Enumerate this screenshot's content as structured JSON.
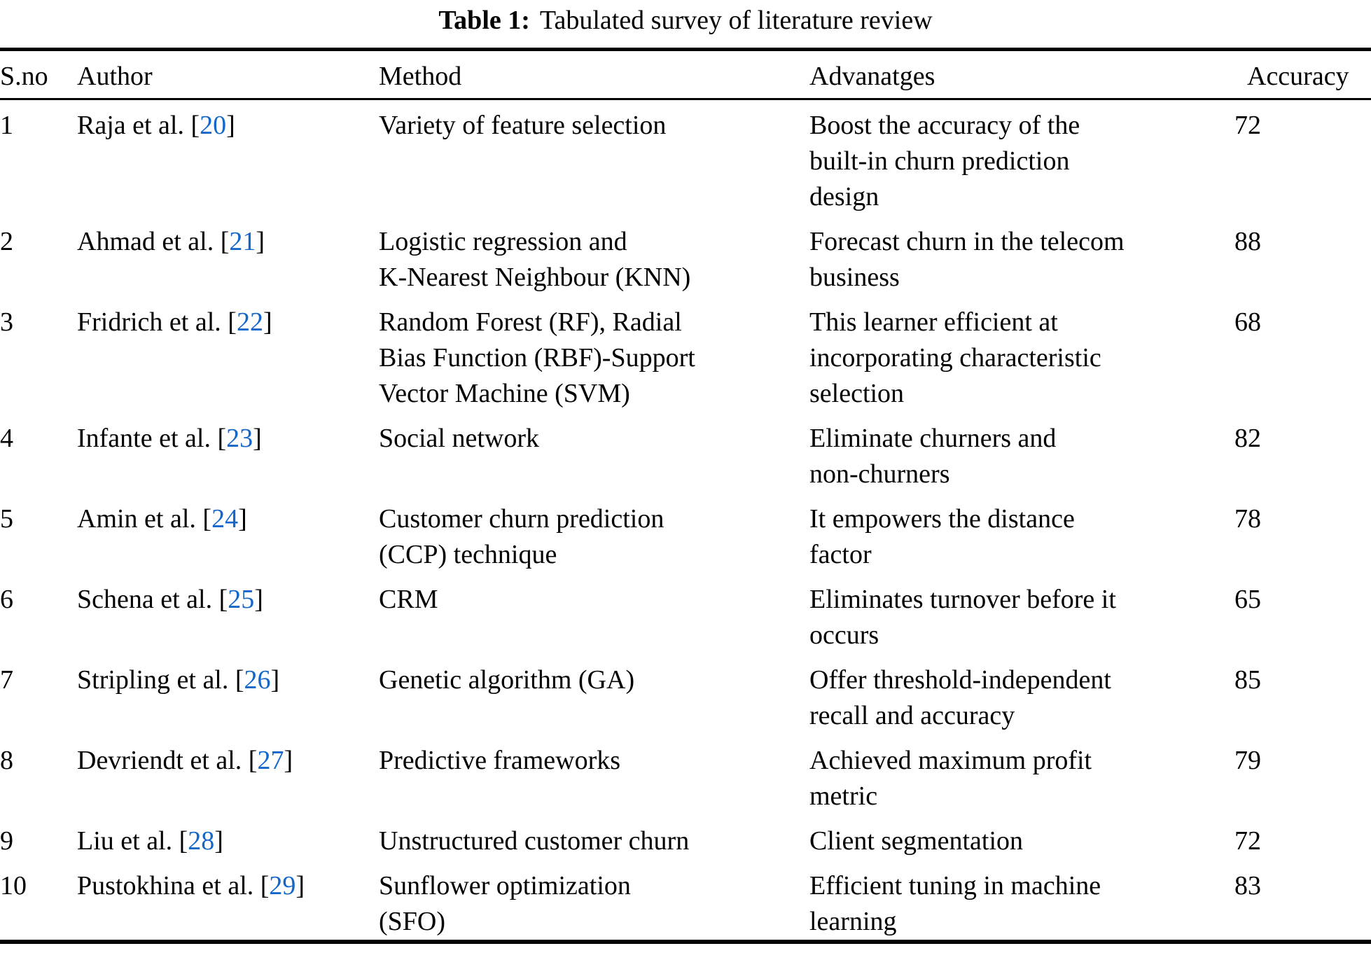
{
  "caption": {
    "label": "Table 1:",
    "text": "Tabulated survey of literature review"
  },
  "columns": [
    "S.no",
    "Author",
    "Method",
    "Advanatges",
    "Accuracy"
  ],
  "colors": {
    "ref_blue": "#1467c8",
    "text": "#000000"
  },
  "table": {
    "rows": [
      {
        "sno": "1",
        "author_name": "Raja et al.",
        "ref": "20",
        "method": "Variety of feature selection",
        "advantages": "Boost the accuracy of the\nbuilt-in churn prediction\ndesign",
        "accuracy": "72"
      },
      {
        "sno": "2",
        "author_name": "Ahmad et al.",
        "ref": "21",
        "method": "Logistic regression and\nK-Nearest Neighbour (KNN)",
        "advantages": "Forecast churn in the telecom\nbusiness",
        "accuracy": "88"
      },
      {
        "sno": "3",
        "author_name": "Fridrich et al.",
        "ref": "22",
        "method": "Random Forest (RF), Radial\nBias Function (RBF)-Support\nVector Machine (SVM)",
        "advantages": "This learner efficient at\nincorporating characteristic\nselection",
        "accuracy": "68"
      },
      {
        "sno": "4",
        "author_name": "Infante et al.",
        "ref": "23",
        "method": "Social network",
        "advantages": "Eliminate churners and\nnon-churners",
        "accuracy": "82"
      },
      {
        "sno": "5",
        "author_name": "Amin et al.",
        "ref": "24",
        "method": "Customer churn prediction\n(CCP) technique",
        "advantages": "It empowers the distance\nfactor",
        "accuracy": "78"
      },
      {
        "sno": "6",
        "author_name": "Schena et al.",
        "ref": "25",
        "method": "CRM",
        "advantages": "Eliminates turnover before it\noccurs",
        "accuracy": "65"
      },
      {
        "sno": "7",
        "author_name": "Stripling et al.",
        "ref": "26",
        "method": "Genetic algorithm (GA)",
        "advantages": "Offer threshold-independent\nrecall and accuracy",
        "accuracy": "85"
      },
      {
        "sno": "8",
        "author_name": "Devriendt et al.",
        "ref": "27",
        "method": "Predictive frameworks",
        "advantages": "Achieved maximum profit\nmetric",
        "accuracy": "79"
      },
      {
        "sno": "9",
        "author_name": "Liu et al.",
        "ref": "28",
        "method": "Unstructured customer churn",
        "advantages": "Client segmentation",
        "accuracy": "72"
      },
      {
        "sno": "10",
        "author_name": "Pustokhina et al.",
        "ref": "29",
        "method": "Sunflower optimization\n(SFO)",
        "advantages": "Efficient tuning in machine\nlearning",
        "accuracy": "83"
      }
    ]
  }
}
